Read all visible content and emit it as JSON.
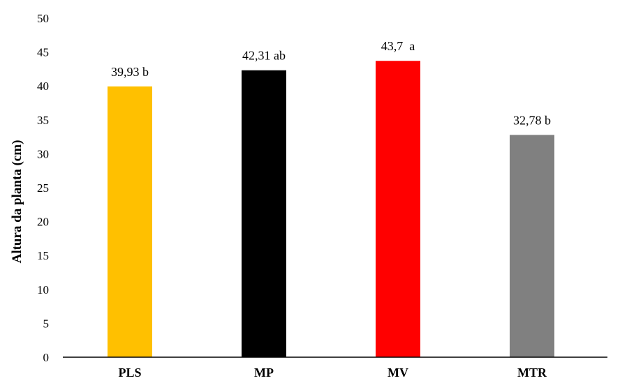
{
  "chart_data": {
    "type": "bar",
    "title": "",
    "xlabel": "",
    "ylabel": "Altura da planta (cm)",
    "ylim": [
      0,
      50
    ],
    "yticks": [
      0,
      5,
      10,
      15,
      20,
      25,
      30,
      35,
      40,
      45,
      50
    ],
    "grid": false,
    "legend": "none",
    "categories": [
      "PLS",
      "MP",
      "MV",
      "MTR"
    ],
    "values": [
      39.93,
      42.31,
      43.7,
      32.78
    ],
    "data_labels": [
      "39,93 b",
      "42,31 ab",
      "43,7  a",
      "32,78 b"
    ],
    "colors": [
      "#FFC000",
      "#000000",
      "#FF0000",
      "#808080"
    ]
  }
}
